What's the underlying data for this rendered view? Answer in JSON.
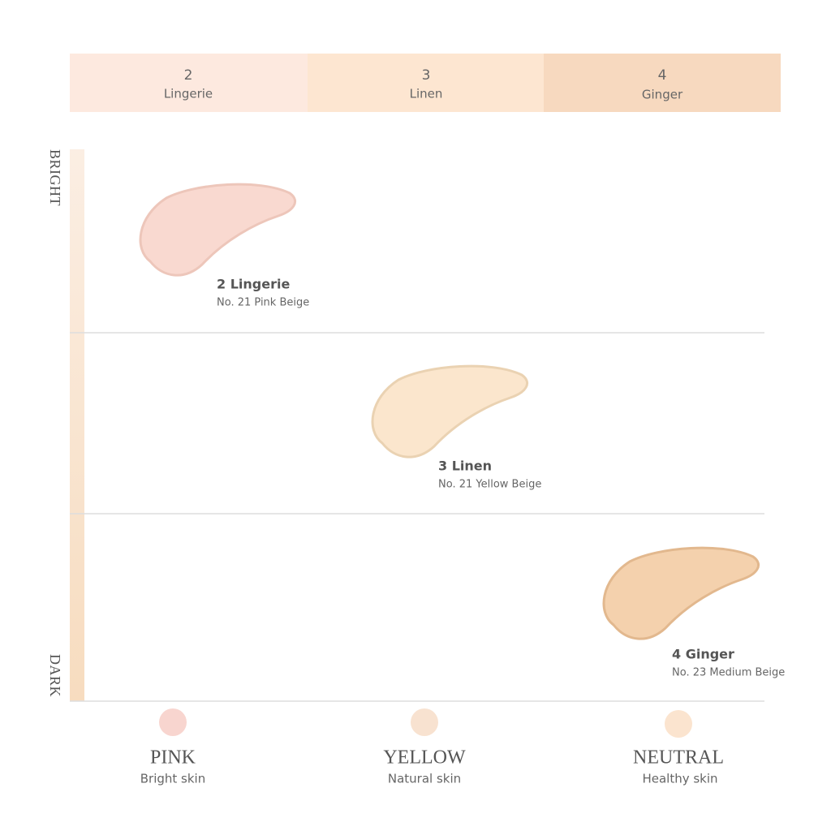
{
  "header": {
    "shades": [
      {
        "number": "2",
        "name": "Lingerie"
      },
      {
        "number": "3",
        "name": "Linen"
      },
      {
        "number": "4",
        "name": "Ginger"
      }
    ]
  },
  "axis": {
    "top": "BRIGHT",
    "bottom": "DARK"
  },
  "swatches": [
    {
      "title": "2 Lingerie",
      "subtitle": "No. 21 Pink Beige"
    },
    {
      "title": "3 Linen",
      "subtitle": "No. 21 Yellow Beige"
    },
    {
      "title": "4 Ginger",
      "subtitle": "No. 23 Medium Beige"
    }
  ],
  "undertones": [
    {
      "name": "PINK",
      "description": "Bright skin"
    },
    {
      "name": "YELLOW",
      "description": "Natural skin"
    },
    {
      "name": "NEUTRAL",
      "description": "Healthy skin"
    }
  ]
}
